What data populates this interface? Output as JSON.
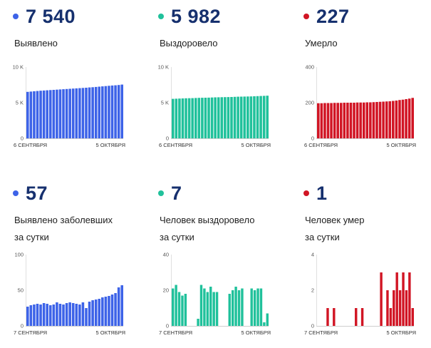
{
  "panels": [
    {
      "value": "7 540",
      "label_lines": [
        "Выявлено"
      ],
      "color": "#3d63e8",
      "chart_data": {
        "type": "bar",
        "ylim": [
          0,
          10000
        ],
        "yticks": [
          {
            "v": 0,
            "t": "0"
          },
          {
            "v": 5000,
            "t": "5 K"
          },
          {
            "v": 10000,
            "t": "10 K"
          }
        ],
        "start_label": "6 СЕНТЯБРЯ",
        "end_label": "5 ОКТЯБРЯ",
        "values": [
          6520,
          6560,
          6600,
          6640,
          6680,
          6710,
          6740,
          6770,
          6800,
          6830,
          6860,
          6890,
          6920,
          6950,
          6980,
          7010,
          7040,
          7070,
          7100,
          7140,
          7170,
          7210,
          7250,
          7290,
          7330,
          7370,
          7410,
          7440,
          7480,
          7540
        ]
      }
    },
    {
      "value": "5 982",
      "label_lines": [
        "Выздоровело"
      ],
      "color": "#20c19b",
      "chart_data": {
        "type": "bar",
        "ylim": [
          0,
          10000
        ],
        "yticks": [
          {
            "v": 0,
            "t": "0"
          },
          {
            "v": 5000,
            "t": "5 K"
          },
          {
            "v": 10000,
            "t": "10 K"
          }
        ],
        "start_label": "6 СЕНТЯБРЯ",
        "end_label": "5 ОКТЯБРЯ",
        "values": [
          5540,
          5560,
          5580,
          5600,
          5620,
          5630,
          5640,
          5660,
          5680,
          5690,
          5700,
          5710,
          5730,
          5750,
          5760,
          5770,
          5780,
          5790,
          5800,
          5820,
          5840,
          5850,
          5860,
          5870,
          5880,
          5900,
          5920,
          5940,
          5960,
          5982
        ]
      }
    },
    {
      "value": "227",
      "label_lines": [
        "Умерло"
      ],
      "color": "#d11524",
      "chart_data": {
        "type": "bar",
        "ylim": [
          0,
          400
        ],
        "yticks": [
          {
            "v": 0,
            "t": "0"
          },
          {
            "v": 200,
            "t": "200"
          },
          {
            "v": 400,
            "t": "400"
          }
        ],
        "start_label": "6 СЕНТЯБРЯ",
        "end_label": "5 ОКТЯБРЯ",
        "values": [
          197,
          197,
          198,
          198,
          198,
          199,
          199,
          199,
          200,
          200,
          200,
          200,
          201,
          201,
          201,
          202,
          202,
          203,
          204,
          205,
          206,
          207,
          208,
          210,
          212,
          215,
          217,
          220,
          223,
          227
        ]
      }
    },
    {
      "value": "57",
      "label_lines": [
        "Выявлено заболевших",
        "за сутки"
      ],
      "color": "#3d63e8",
      "chart_data": {
        "type": "bar",
        "ylim": [
          0,
          100
        ],
        "yticks": [
          {
            "v": 0,
            "t": "0"
          },
          {
            "v": 50,
            "t": "50"
          },
          {
            "v": 100,
            "t": "100"
          }
        ],
        "start_label": "7 СЕНТЯБРЯ",
        "end_label": "5 ОКТЯБРЯ",
        "values": [
          27,
          29,
          30,
          31,
          30,
          32,
          31,
          29,
          30,
          33,
          31,
          30,
          32,
          33,
          32,
          31,
          30,
          33,
          25,
          34,
          36,
          37,
          38,
          40,
          41,
          42,
          44,
          46,
          54,
          57
        ]
      }
    },
    {
      "value": "7",
      "label_lines": [
        "Человек выздоровело",
        "за сутки"
      ],
      "color": "#20c19b",
      "chart_data": {
        "type": "bar",
        "ylim": [
          0,
          40
        ],
        "yticks": [
          {
            "v": 0,
            "t": "0"
          },
          {
            "v": 20,
            "t": "20"
          },
          {
            "v": 40,
            "t": "40"
          }
        ],
        "start_label": "7 СЕНТЯБРЯ",
        "end_label": "5 ОКТЯБРЯ",
        "values": [
          21,
          23,
          19,
          17,
          18,
          0,
          0,
          0,
          4,
          23,
          21,
          19,
          22,
          19,
          19,
          0,
          0,
          0,
          18,
          20,
          22,
          20,
          21,
          0,
          0,
          21,
          20,
          21,
          21,
          2,
          7
        ]
      }
    },
    {
      "value": "1",
      "label_lines": [
        "Человек умер",
        "за сутки"
      ],
      "color": "#d11524",
      "chart_data": {
        "type": "bar",
        "ylim": [
          0,
          4
        ],
        "yticks": [
          {
            "v": 0,
            "t": "0"
          },
          {
            "v": 2,
            "t": "2"
          },
          {
            "v": 4,
            "t": "4"
          }
        ],
        "start_label": "7 СЕНТЯБРЯ",
        "end_label": "5 ОКТЯБРЯ",
        "values": [
          0,
          0,
          0,
          1,
          0,
          1,
          0,
          0,
          0,
          0,
          0,
          0,
          1,
          0,
          1,
          0,
          0,
          0,
          0,
          0,
          3,
          0,
          2,
          1,
          2,
          3,
          2,
          3,
          2,
          3,
          1
        ]
      }
    }
  ]
}
